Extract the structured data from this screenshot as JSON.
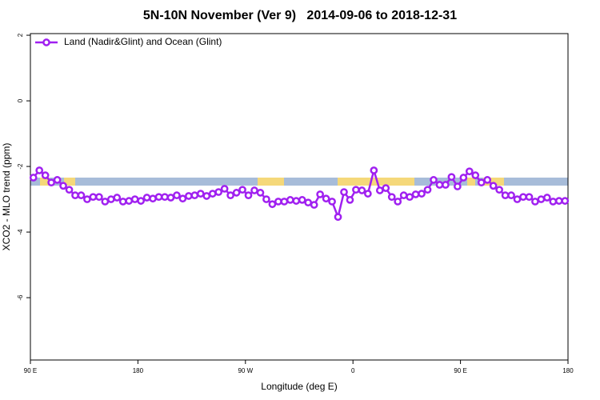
{
  "chart_data": {
    "type": "line",
    "title": "5N-10N November (Ver 9)   2014-09-06 to 2018-12-31",
    "xlabel": "Longitude (deg E)",
    "ylabel": "XCO2 - MLO trend (ppm)",
    "xlim": [
      90,
      540
    ],
    "ylim": [
      -7.9,
      2.05
    ],
    "xticks": [
      {
        "value": 90,
        "label": "90 E"
      },
      180,
      {
        "value": 270,
        "label": "90 W"
      },
      {
        "value": 360,
        "label": "0"
      },
      {
        "value": 450,
        "label": "90 E"
      },
      {
        "value": 540,
        "label": "180"
      }
    ],
    "yticks": [
      -6,
      -4,
      -2,
      0,
      2
    ],
    "legend": "top-left",
    "x": [
      92.5,
      97.5,
      102.5,
      107.5,
      112.5,
      117.5,
      122.5,
      127.5,
      132.5,
      137.5,
      142.5,
      147.5,
      152.5,
      157.5,
      162.5,
      167.5,
      172.5,
      177.5,
      182.5,
      187.5,
      192.5,
      197.5,
      202.5,
      207.5,
      212.5,
      217.5,
      222.5,
      227.5,
      232.5,
      237.5,
      242.5,
      247.5,
      252.5,
      257.5,
      262.5,
      267.5,
      272.5,
      277.5,
      282.5,
      287.5,
      292.5,
      297.5,
      302.5,
      307.5,
      312.5,
      317.5,
      322.5,
      327.5,
      332.5,
      337.5,
      342.5,
      347.5,
      352.5,
      357.5,
      362.5,
      367.5,
      372.5,
      377.5,
      382.5,
      387.5,
      392.5,
      397.5,
      402.5,
      407.5,
      412.5,
      417.5,
      422.5,
      427.5,
      432.5,
      437.5,
      442.5,
      447.5,
      452.5,
      457.5,
      462.5,
      467.5,
      472.5,
      477.5,
      482.5,
      487.5,
      492.5,
      497.5,
      502.5,
      507.5,
      512.5,
      517.5,
      522.5,
      527.5,
      532.5,
      537.5
    ],
    "series": [
      {
        "name": "Land (Nadir&Glint) and Ocean (Glint)",
        "color": "#a020f0",
        "values": [
          -2.34,
          -2.12,
          -2.27,
          -2.49,
          -2.41,
          -2.59,
          -2.71,
          -2.88,
          -2.88,
          -3.0,
          -2.93,
          -2.93,
          -3.07,
          -3.0,
          -2.95,
          -3.07,
          -3.05,
          -3.0,
          -3.05,
          -2.95,
          -2.98,
          -2.93,
          -2.93,
          -2.95,
          -2.88,
          -2.98,
          -2.9,
          -2.88,
          -2.83,
          -2.9,
          -2.83,
          -2.78,
          -2.68,
          -2.88,
          -2.8,
          -2.71,
          -2.88,
          -2.73,
          -2.8,
          -3.0,
          -3.15,
          -3.07,
          -3.07,
          -3.02,
          -3.05,
          -3.02,
          -3.1,
          -3.17,
          -2.85,
          -2.98,
          -3.07,
          -3.54,
          -2.78,
          -3.02,
          -2.71,
          -2.73,
          -2.83,
          -2.12,
          -2.73,
          -2.66,
          -2.93,
          -3.07,
          -2.88,
          -2.93,
          -2.85,
          -2.83,
          -2.71,
          -2.41,
          -2.56,
          -2.56,
          -2.32,
          -2.61,
          -2.34,
          -2.15,
          -2.27,
          -2.49,
          -2.41,
          -2.59,
          -2.71,
          -2.88,
          -2.88,
          -3.0,
          -2.93,
          -2.93,
          -3.07,
          -3.0,
          -2.95,
          -3.07,
          -3.05,
          -3.05
        ]
      }
    ]
  }
}
